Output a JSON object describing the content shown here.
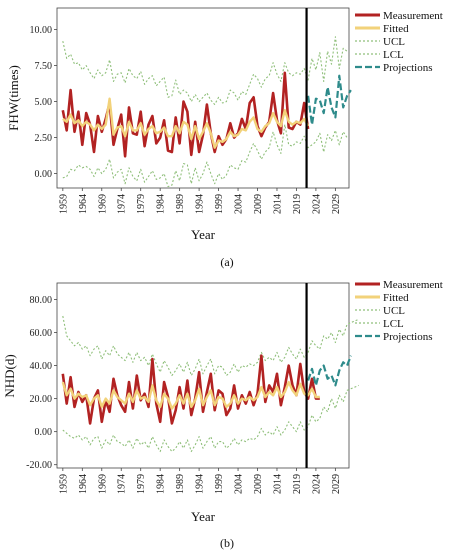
{
  "panels": [
    {
      "caption": "(a)",
      "chart_data": {
        "type": "line",
        "xlabel": "Year",
        "ylabel": "FHW(times)",
        "ylim": [
          -1.0,
          11.5
        ],
        "yticks": [
          "0.00",
          "2.50",
          "5.00",
          "7.50",
          "10.00"
        ],
        "ytick_values": [
          0,
          2.5,
          5,
          7.5,
          10
        ],
        "xticks": [
          "1959",
          "1964",
          "1969",
          "1974",
          "1979",
          "1984",
          "1989",
          "1994",
          "1999",
          "2004",
          "2009",
          "2014",
          "2019",
          "2024",
          "2029"
        ],
        "xlim": [
          1957.5,
          2032.5
        ],
        "divider_x": 2021.6,
        "grid": false,
        "legend_position": "right",
        "colors": {
          "measurement": "#b22222",
          "fitted": "#f2d27a",
          "ucl": "#8fbf7a",
          "lcl": "#8fbf7a",
          "projections": "#2e8b8b"
        },
        "series": [
          {
            "name": "Measurement",
            "key": "measurement",
            "x_start": 1959,
            "values": [
              4.4,
              3.0,
              5.8,
              2.9,
              4.3,
              2.0,
              4.2,
              3.4,
              1.5,
              4.0,
              2.9,
              3.8,
              4.9,
              2.0,
              3.1,
              4.1,
              1.2,
              4.6,
              2.8,
              2.7,
              4.3,
              1.9,
              3.4,
              4.0,
              2.1,
              2.5,
              3.7,
              1.6,
              1.5,
              3.9,
              2.1,
              5.0,
              4.3,
              1.3,
              3.6,
              1.5,
              2.7,
              4.8,
              2.8,
              1.5,
              2.6,
              2.0,
              2.4,
              3.5,
              2.5,
              2.8,
              3.8,
              3.1,
              4.9,
              5.3,
              3.3,
              2.6,
              3.2,
              3.6,
              5.6,
              3.7,
              2.8,
              7.0,
              3.2,
              3.1,
              3.6,
              3.4,
              4.9,
              3.1
            ]
          },
          {
            "name": "Fitted",
            "key": "fitted",
            "x_start": 1959,
            "values": [
              3.8,
              3.6,
              4.1,
              3.5,
              3.7,
              3.3,
              3.6,
              3.4,
              3.0,
              3.4,
              3.1,
              3.4,
              5.2,
              2.7,
              3.2,
              3.3,
              2.6,
              3.6,
              3.0,
              3.0,
              3.5,
              2.7,
              3.1,
              3.3,
              2.8,
              2.9,
              3.2,
              2.6,
              2.6,
              3.3,
              2.8,
              3.6,
              3.4,
              2.4,
              3.3,
              2.4,
              2.9,
              3.5,
              2.8,
              1.8,
              2.3,
              2.2,
              2.4,
              2.9,
              2.6,
              2.7,
              3.1,
              3.0,
              3.6,
              3.9,
              3.1,
              2.9,
              3.3,
              3.5,
              4.2,
              3.6,
              3.3,
              4.4,
              3.6,
              3.4,
              3.6,
              3.5,
              3.8,
              3.3
            ]
          },
          {
            "name": "UCL",
            "key": "ucl",
            "x_start": 1959,
            "values": [
              9.2,
              8.0,
              8.3,
              7.6,
              7.7,
              7.2,
              7.5,
              7.0,
              6.6,
              7.2,
              6.8,
              7.0,
              7.9,
              6.4,
              6.9,
              7.0,
              6.3,
              7.3,
              6.8,
              6.6,
              7.1,
              6.2,
              6.6,
              6.8,
              6.1,
              6.4,
              6.7,
              5.3,
              5.4,
              6.5,
              5.5,
              5.8,
              5.6,
              5.0,
              5.5,
              5.0,
              5.3,
              5.6,
              5.1,
              4.8,
              5.3,
              4.9,
              5.0,
              5.8,
              5.6,
              5.1,
              5.7,
              5.5,
              6.2,
              6.9,
              6.6,
              6.0,
              6.6,
              6.8,
              7.7,
              6.9,
              6.4,
              7.7,
              7.0,
              6.8,
              7.0,
              6.9,
              7.3,
              6.5,
              8.0,
              7.2,
              8.4,
              6.4,
              8.5,
              7.6,
              9.5,
              7.3,
              8.7,
              8.5
            ]
          },
          {
            "name": "LCL",
            "key": "lcl",
            "x_start": 1959,
            "values": [
              -0.3,
              -0.2,
              0.3,
              0.2,
              0.6,
              0.4,
              0.5,
              0.3,
              -0.2,
              0.4,
              0.0,
              0.3,
              1.0,
              -0.3,
              0.1,
              0.3,
              -0.7,
              0.4,
              -0.2,
              -0.5,
              0.3,
              -0.6,
              -0.2,
              0.2,
              -0.4,
              -0.3,
              0.0,
              -0.9,
              -0.8,
              0.2,
              -0.5,
              0.7,
              0.6,
              -0.7,
              0.4,
              -0.5,
              0.0,
              0.8,
              0.0,
              -0.7,
              0.0,
              -0.4,
              -0.1,
              0.6,
              0.4,
              0.3,
              0.9,
              0.8,
              1.5,
              2.1,
              1.6,
              1.0,
              1.5,
              1.8,
              2.9,
              2.0,
              1.4,
              3.4,
              2.0,
              1.9,
              2.2,
              2.1,
              2.6,
              1.8,
              2.0,
              2.2,
              2.8,
              1.5,
              2.7,
              2.3,
              3.0,
              2.0,
              2.9,
              2.5
            ]
          },
          {
            "name": "Projections",
            "key": "projections",
            "x_start": 2022,
            "values": [
              5.4,
              3.4,
              5.2,
              5.1,
              4.2,
              6.0,
              4.6,
              3.9,
              6.8,
              4.6,
              5.4,
              5.8
            ]
          }
        ]
      }
    },
    {
      "caption": "(b)",
      "chart_data": {
        "type": "line",
        "xlabel": "Year",
        "ylabel": "NHD(d)",
        "ylim": [
          -22,
          90
        ],
        "yticks": [
          "-20.00",
          "0.00",
          "20.00",
          "40.00",
          "60.00",
          "80.00"
        ],
        "ytick_values": [
          -20,
          0,
          20,
          40,
          60,
          80
        ],
        "xticks": [
          "1959",
          "1964",
          "1969",
          "1974",
          "1979",
          "1984",
          "1989",
          "1994",
          "1999",
          "2004",
          "2009",
          "2014",
          "2019",
          "2024",
          "2029"
        ],
        "xlim": [
          1957.5,
          2032.5
        ],
        "divider_x": 2021.6,
        "grid": false,
        "legend_position": "right",
        "colors": {
          "measurement": "#b22222",
          "fitted": "#f2d27a",
          "ucl": "#8fbf7a",
          "lcl": "#8fbf7a",
          "projections": "#2e8b8b"
        },
        "series": [
          {
            "name": "Measurement",
            "key": "measurement",
            "x_start": 1959,
            "values": [
              35,
              17,
              33,
              15,
              24,
              18,
              22,
              5,
              20,
              25,
              6,
              19,
              12,
              32,
              22,
              16,
              12,
              30,
              14,
              34,
              19,
              23,
              15,
              44,
              17,
              6,
              30,
              21,
              5,
              13,
              27,
              14,
              31,
              10,
              20,
              36,
              12,
              24,
              35,
              13,
              25,
              23,
              10,
              14,
              28,
              14,
              22,
              17,
              24,
              16,
              23,
              46,
              18,
              28,
              24,
              35,
              16,
              27,
              40,
              28,
              22,
              41,
              24,
              20,
              32,
              20,
              20
            ]
          },
          {
            "name": "Fitted",
            "key": "fitted",
            "x_start": 1959,
            "values": [
              30,
              22,
              26,
              20,
              23,
              21,
              22,
              16,
              20,
              22,
              15,
              20,
              17,
              25,
              21,
              19,
              17,
              23,
              18,
              25,
              20,
              21,
              18,
              28,
              19,
              15,
              23,
              20,
              14,
              17,
              22,
              17,
              23,
              15,
              19,
              26,
              16,
              21,
              25,
              16,
              21,
              20,
              15,
              17,
              22,
              17,
              20,
              19,
              21,
              19,
              21,
              27,
              21,
              24,
              22,
              27,
              21,
              24,
              30,
              25,
              22,
              29,
              23,
              22,
              26,
              21,
              21
            ]
          },
          {
            "name": "UCL",
            "key": "ucl",
            "x_start": 1959,
            "values": [
              70,
              58,
              55,
              52,
              54,
              50,
              52,
              46,
              50,
              52,
              44,
              49,
              46,
              52,
              47,
              45,
              43,
              48,
              42,
              48,
              43,
              45,
              40,
              47,
              41,
              36,
              43,
              39,
              34,
              37,
              41,
              36,
              42,
              34,
              38,
              44,
              35,
              40,
              44,
              35,
              40,
              39,
              34,
              36,
              41,
              36,
              40,
              39,
              41,
              40,
              42,
              48,
              43,
              45,
              43,
              48,
              42,
              45,
              51,
              47,
              44,
              50,
              45,
              48,
              55,
              52,
              50,
              58,
              56,
              60,
              54,
              62,
              58,
              65,
              66,
              67,
              68
            ]
          },
          {
            "name": "LCL",
            "key": "lcl",
            "x_start": 1959,
            "values": [
              1,
              -1,
              -3,
              -4,
              -2,
              -5,
              -3,
              -8,
              -4,
              -3,
              -10,
              -5,
              -8,
              -2,
              -6,
              -7,
              -9,
              -5,
              -10,
              -4,
              -8,
              -6,
              -10,
              -3,
              -8,
              -12,
              -5,
              -9,
              -12,
              -10,
              -6,
              -10,
              -5,
              -12,
              -8,
              -3,
              -10,
              -6,
              -3,
              -10,
              -6,
              -6,
              -10,
              -8,
              -4,
              -8,
              -5,
              -6,
              -4,
              -5,
              -3,
              2,
              -2,
              0,
              -2,
              3,
              -2,
              1,
              6,
              3,
              0,
              6,
              1,
              3,
              10,
              6,
              8,
              15,
              12,
              20,
              14,
              22,
              18,
              25,
              26,
              27,
              28
            ]
          },
          {
            "name": "Projections",
            "key": "projections",
            "x_start": 2022,
            "values": [
              31,
              38,
              28,
              37,
              40,
              32,
              34,
              28,
              37,
              42,
              40,
              46
            ]
          }
        ]
      }
    }
  ]
}
